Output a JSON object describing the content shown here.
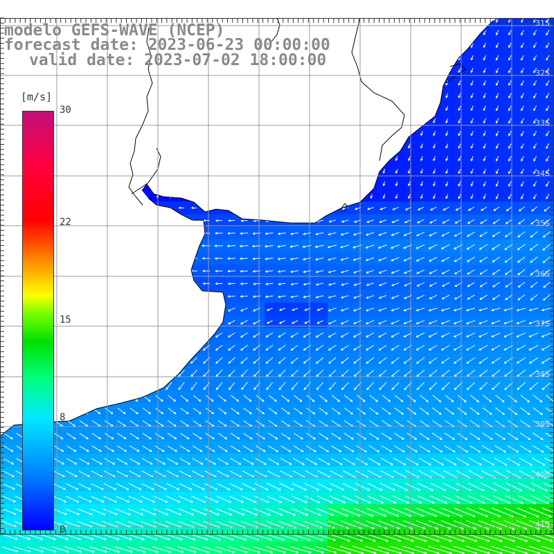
{
  "title": {
    "model": "modelo GEFS-WAVE (NCEP)",
    "forecast": "forecast date: 2023-06-23 00:00:00",
    "valid": "valid date: 2023-07-02 18:00:00"
  },
  "colorbar": {
    "unit": "[m/s]",
    "ticks": [
      "30",
      "22",
      "15",
      "8",
      "0"
    ],
    "tick_values": [
      30,
      22,
      15,
      8,
      0
    ]
  },
  "latitudes": [
    "31S",
    "32S",
    "33S",
    "34S",
    "35S",
    "36S",
    "37S",
    "38S",
    "39S",
    "40S",
    "41S"
  ],
  "colors": {
    "land": "#ffffff",
    "grid": "#9a9a9a",
    "arrow": "#ffffff",
    "coast": "#000000"
  },
  "map": {
    "variable": "surface wind speed",
    "field_range": [
      0,
      15
    ]
  }
}
